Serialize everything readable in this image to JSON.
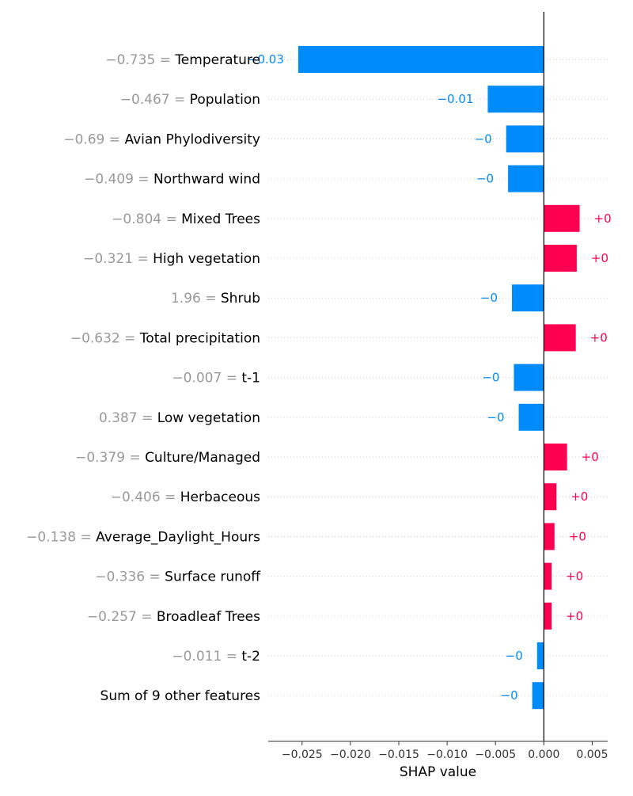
{
  "chart_data": {
    "type": "bar",
    "orientation": "horizontal",
    "xlabel": "SHAP value",
    "xlim": [
      -0.0285,
      0.0066
    ],
    "xticks": [
      -0.025,
      -0.02,
      -0.015,
      -0.01,
      -0.005,
      0.0,
      0.005
    ],
    "xtick_labels": [
      "−0.025",
      "−0.020",
      "−0.015",
      "−0.010",
      "−0.005",
      "0.000",
      "0.005"
    ],
    "grid": "horizontal dotted guide lines per row",
    "colors": {
      "negative": "#008bfb",
      "positive": "#ff0051",
      "feature_value": "#999999",
      "zero_line": "#000000"
    },
    "features": [
      {
        "name": "Temperature",
        "feature_value": "−0.735 =",
        "shap": -0.0254,
        "label": "−0.03"
      },
      {
        "name": "Population",
        "feature_value": "−0.467 =",
        "shap": -0.0058,
        "label": "−0.01"
      },
      {
        "name": "Avian Phylodiversity",
        "feature_value": "−0.69 =",
        "shap": -0.0039,
        "label": "−0"
      },
      {
        "name": "Northward wind",
        "feature_value": "−0.409 =",
        "shap": -0.0037,
        "label": "−0"
      },
      {
        "name": "Mixed Trees",
        "feature_value": "−0.804 =",
        "shap": 0.0037,
        "label": "+0"
      },
      {
        "name": "High vegetation",
        "feature_value": "−0.321 =",
        "shap": 0.0034,
        "label": "+0"
      },
      {
        "name": "Shrub",
        "feature_value": "1.96 =",
        "shap": -0.0033,
        "label": "−0"
      },
      {
        "name": "Total precipitation",
        "feature_value": "−0.632 =",
        "shap": 0.0033,
        "label": "+0"
      },
      {
        "name": "t-1",
        "feature_value": "−0.007 =",
        "shap": -0.0031,
        "label": "−0"
      },
      {
        "name": "Low vegetation",
        "feature_value": "0.387 =",
        "shap": -0.0026,
        "label": "−0"
      },
      {
        "name": "Culture/Managed",
        "feature_value": "−0.379 =",
        "shap": 0.0024,
        "label": "+0"
      },
      {
        "name": "Herbaceous",
        "feature_value": "−0.406 =",
        "shap": 0.0013,
        "label": "+0"
      },
      {
        "name": "Average_Daylight_Hours",
        "feature_value": "−0.138 =",
        "shap": 0.0011,
        "label": "+0"
      },
      {
        "name": "Surface runoff",
        "feature_value": "−0.336 =",
        "shap": 0.0008,
        "label": "+0"
      },
      {
        "name": "Broadleaf Trees",
        "feature_value": "−0.257 =",
        "shap": 0.0008,
        "label": "+0"
      },
      {
        "name": "t-2",
        "feature_value": "−0.011 =",
        "shap": -0.0007,
        "label": "−0"
      },
      {
        "name": "Sum of 9 other features",
        "feature_value": "",
        "shap": -0.0012,
        "label": "−0"
      }
    ]
  }
}
